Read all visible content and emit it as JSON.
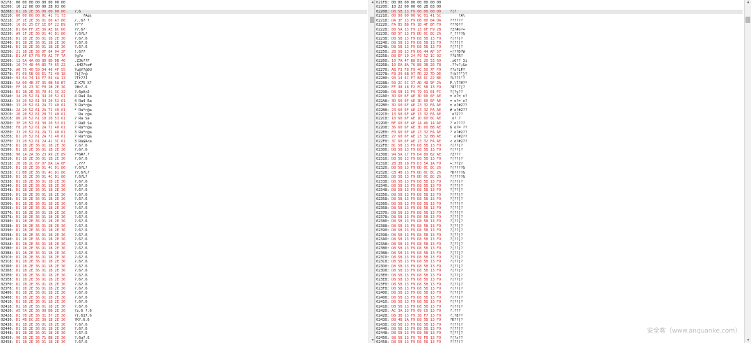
{
  "left_pane": {
    "header_rows": [
      {
        "addr": "021F8:",
        "bytes": "00 00 00 00 00 00 00 00",
        "ascii": ""
      },
      {
        "addr": "02200:",
        "bytes": "10 22 00 00 00 2B 03 00",
        "ascii": ""
      }
    ],
    "rows": [
      {
        "addr": "02208:",
        "bytes": "D1 1B 2E 36 00 00 00 00",
        "ascii": "?.6"
      },
      {
        "addr": "02210:",
        "bytes": "00 00 00 00 9C 41 71 73",
        "ascii": "    ?Aqs"
      },
      {
        "addr": "02218:",
        "bytes": "2F 1E 2E 36 D1 60 A7 80",
        "ascii": "/..6?`?"
      },
      {
        "addr": "02220:",
        "bytes": "16 8C 25 E7 1E DF 22 B9",
        "ascii": "??\"?"
      },
      {
        "addr": "02228:",
        "bytes": "D1 B4 FF 2E 36 AE 8C 60",
        "ascii": "??.6?`"
      },
      {
        "addr": "02230:",
        "bytes": "A9 1F 2E 36 D1 4C D1 86",
        "ascii": "?.6?L?"
      },
      {
        "addr": "02238:",
        "bytes": "D1 1B 2E 36 D1 1B 2E 36",
        "ascii": "?.6?.6"
      },
      {
        "addr": "02240:",
        "bytes": "D1 1B 2E 36 D1 1B 2E 36",
        "ascii": "?.6?.6"
      },
      {
        "addr": "02248:",
        "bytes": "D1 1B 2E 36 D1 1B 2E 36",
        "ascii": "?.6?.6"
      },
      {
        "addr": "02250:",
        "bytes": "21 1B 2E 36 DF 04 94 3F",
        "ascii": "!.6??"
      },
      {
        "addr": "02258:",
        "bytes": "D1 AF 67 FB FD A2 7F 7A",
        "ascii": "?g?z"
      },
      {
        "addr": "02260:",
        "bytes": "12 5A 4A 6B 8D 8D DB 46",
        "ascii": ".ZJk??F"
      },
      {
        "addr": "02268:",
        "bytes": "10 74 48 44 B5 74 65 23",
        "ascii": ".tHD?te#"
      },
      {
        "addr": "02270:",
        "bytes": "A0 75 40 59 D4 40 4F 55",
        "ascii": "?u@Y?@OU"
      },
      {
        "addr": "02278:",
        "bytes": "F1 69 5B 93 E1 72 40 18",
        "ascii": "?i[?r@"
      },
      {
        "addr": "02280:",
        "bytes": "93 54 74 14 F7 E4 4A 13",
        "ascii": "?Tt??J"
      },
      {
        "addr": "02288:",
        "bytes": "5A 00 4B 37 35 0B 58 B7",
        "ascii": "Z K75 X?"
      },
      {
        "addr": "02290:",
        "bytes": "FF 16 23 3C F0 1B 2E 36",
        "ascii": "?#<?.6"
      },
      {
        "addr": "02298:",
        "bytes": "D1 1B 2E 36 70 41 3C 32",
        "ascii": "?.6pA<2"
      },
      {
        "addr": "022A0:",
        "bytes": "34 20 52 61 34 20 52 61",
        "ascii": "4 Ra4 Ra"
      },
      {
        "addr": "022A8:",
        "bytes": "34 20 52 61 34 20 52 61",
        "ascii": "4 Ra4 Ra"
      },
      {
        "addr": "022B0:",
        "bytes": "33 20 52 61 2A 72 40 61",
        "ascii": "3 Ra*r@a"
      },
      {
        "addr": "022B8:",
        "bytes": "2A 20 52 61 2A 72 40 61",
        "ascii": "* Ra*r@a"
      },
      {
        "addr": "022C0:",
        "bytes": "20 20 52 61 20 72 40 61",
        "ascii": "  Ra r@a"
      },
      {
        "addr": "022C8:",
        "bytes": "80 20 52 61 10 20 53 61",
        "ascii": "? Ra Sa"
      },
      {
        "addr": "022D0:",
        "bytes": "3F 20 52 61 30 20 53 61",
        "ascii": "? Ra0 Sa"
      },
      {
        "addr": "022D8:",
        "bytes": "F8 20 52 61 2A 72 40 61",
        "ascii": "? Ra*r@a"
      },
      {
        "addr": "022E0:",
        "bytes": "33 20 52 61 2A 72 40 61",
        "ascii": "3 Ra*r@a"
      },
      {
        "addr": "022E8:",
        "bytes": "D1 20 52 61 2A 72 40 61",
        "ascii": "? Ra*r@a"
      },
      {
        "addr": "022F0:",
        "bytes": "33 20 52 61 24 41 3C 61",
        "ascii": "3 Ra$A<a"
      },
      {
        "addr": "022F8:",
        "bytes": "D1 1B 2E 36 D1 1B 2E 36",
        "ascii": "?.6?.6"
      },
      {
        "addr": "02300:",
        "bytes": "D1 1B 2E 36 D1 1B 2E 36",
        "ascii": "?.6?.6"
      },
      {
        "addr": "02308:",
        "bytes": "90 1A 2A 36 23 A9 2E 89",
        "ascii": "?*6#?.?"
      },
      {
        "addr": "02310:",
        "bytes": "D1 1B 2E 36 D1 1B 2E 36",
        "ascii": "?.6?.6"
      },
      {
        "addr": "02318:",
        "bytes": "20 1B 2C 87 D7 DA 1A 0F",
        "ascii": " ,???"
      },
      {
        "addr": "02320:",
        "bytes": "D1 1B 2E 36 D1 4C D1 86",
        "ascii": "?.6?L?"
      },
      {
        "addr": "02328:",
        "bytes": "C1 BB 2E 36 D1 4C D1 86",
        "ascii": "??.6?L?"
      },
      {
        "addr": "02330:",
        "bytes": "D1 1B 2E 36 D1 4C D1 86",
        "ascii": "?.6?L?"
      },
      {
        "addr": "02338:",
        "bytes": "D1 1B 2E 36 D1 1B 2E 36",
        "ascii": "?.6?.6"
      },
      {
        "addr": "02340:",
        "bytes": "D1 1B 2E 36 D1 1B 2E 36",
        "ascii": "?.6?.6"
      },
      {
        "addr": "02348:",
        "bytes": "D1 1B 2E 36 D1 1B 2E 36",
        "ascii": "?.6?.6"
      },
      {
        "addr": "02350:",
        "bytes": "D1 1B 2E 36 D1 1B 2E 36",
        "ascii": "?.6?.6"
      },
      {
        "addr": "02358:",
        "bytes": "D1 1B 2E 36 D1 1B 2E 36",
        "ascii": "?.6?.6"
      },
      {
        "addr": "02360:",
        "bytes": "D1 1B 2E 36 D1 1B 2E 36",
        "ascii": "?.6?.6"
      },
      {
        "addr": "02368:",
        "bytes": "D1 1B 2E 36 D1 1B 2E 36",
        "ascii": "?.6?.6"
      },
      {
        "addr": "02370:",
        "bytes": "D1 1B 2E 36 D1 1B 2E 36",
        "ascii": "?.6?.6"
      },
      {
        "addr": "02378:",
        "bytes": "D1 1B 2E 36 D1 1B 2E 36",
        "ascii": "?.6?.6"
      },
      {
        "addr": "02380:",
        "bytes": "D1 1B 2E 36 D1 1B 2E 36",
        "ascii": "?.6?.6"
      },
      {
        "addr": "02388:",
        "bytes": "D1 1B 2E 36 D1 1B 2E 36",
        "ascii": "?.6?.6"
      },
      {
        "addr": "02390:",
        "bytes": "D1 1B 2E 36 D1 1B 2E 36",
        "ascii": "?.6?.6"
      },
      {
        "addr": "02398:",
        "bytes": "D1 1B 2E 36 D1 1B 2E 36",
        "ascii": "?.6?.6"
      },
      {
        "addr": "023A0:",
        "bytes": "D1 1B 2E 36 D1 1B 2E 36",
        "ascii": "?.6?.6"
      },
      {
        "addr": "023A8:",
        "bytes": "D1 1B 2E 36 D1 1B 2E 36",
        "ascii": "?.6?.6"
      },
      {
        "addr": "023B0:",
        "bytes": "D1 1B 2E 36 D1 1B 2E 36",
        "ascii": "?.6?.6"
      },
      {
        "addr": "023B8:",
        "bytes": "D1 1B 2E 36 D1 1B 2E 36",
        "ascii": "?.6?.6"
      },
      {
        "addr": "023C0:",
        "bytes": "D1 1B 2E 36 D1 1B 2E 36",
        "ascii": "?.6?.6"
      },
      {
        "addr": "023C8:",
        "bytes": "D1 1B 2E 36 D1 1B 2E 36",
        "ascii": "?.6?.6"
      },
      {
        "addr": "023D0:",
        "bytes": "D1 1B 2E 36 D1 1B 2E 36",
        "ascii": "?.6?.6"
      },
      {
        "addr": "023D8:",
        "bytes": "D1 1B 2E 36 D1 1B 2E 36",
        "ascii": "?.6?.6"
      },
      {
        "addr": "023E0:",
        "bytes": "D1 1B 2E 36 D1 1B 2E 36",
        "ascii": "?.6?.6"
      },
      {
        "addr": "023E8:",
        "bytes": "D1 1B 2E 36 D1 1B 2E 36",
        "ascii": "?.6?.6"
      },
      {
        "addr": "023F0:",
        "bytes": "D1 1B 2E 36 D1 1B 2E 36",
        "ascii": "?.6?.6"
      },
      {
        "addr": "023F8:",
        "bytes": "D1 1B 2E 36 D1 1B 2E 36",
        "ascii": "?.6?.6"
      },
      {
        "addr": "02400:",
        "bytes": "D1 1B 2E 36 D1 1B 2E 36",
        "ascii": "?.6?.6"
      },
      {
        "addr": "02408:",
        "bytes": "D1 1B 2E 36 D1 1B 2E 36",
        "ascii": "?.6?.6"
      },
      {
        "addr": "02410:",
        "bytes": "D1 1B 2E 36 D1 1B 2E 36",
        "ascii": "?.6?.6"
      },
      {
        "addr": "02418:",
        "bytes": "D1 1B 2E 36 D1 1B 2E 36",
        "ascii": "?.6?.6"
      },
      {
        "addr": "02420:",
        "bytes": "A5 7A 2E 36 00 DB 2E 36",
        "ascii": "?z.6 ?.6"
      },
      {
        "addr": "02428:",
        "bytes": "D1 7B 2E 36 31 37 2E 36",
        "ascii": "?{.617.6"
      },
      {
        "addr": "02430:",
        "bytes": "D1 4B DC 2E 36 1B 2E 36",
        "ascii": "?K?.6.6"
      },
      {
        "addr": "02438:",
        "bytes": "D1 1B 2E 36 D1 1B 2E 36",
        "ascii": "?.6?.6"
      },
      {
        "addr": "02440:",
        "bytes": "D1 1B 2E 36 D1 1B 2E 36",
        "ascii": "?.6?.6"
      },
      {
        "addr": "02448:",
        "bytes": "D1 1B 2E 36 D1 1B 2E 36",
        "ascii": "?.6?.6"
      },
      {
        "addr": "02450:",
        "bytes": "90 1B 2E 36 71 BB 2E 36",
        "ascii": "?.6q?.6"
      },
      {
        "addr": "02458:",
        "bytes": "D1 1B 2E 36 D1 1B 2E 36",
        "ascii": "?.6?.6"
      },
      {
        "addr": "02460:",
        "bytes": "D1 F1 2C 36 01 4B 2E 36",
        "ascii": "??,6K.6"
      },
      {
        "addr": "02468:",
        "bytes": "D1 1B 2E 36 D1 1B 2E 36",
        "ascii": "?.6?.6"
      }
    ]
  },
  "right_pane": {
    "header_rows": [
      {
        "addr": "021F8:",
        "bytes": "00 00 00 00 00 00 00 00",
        "ascii": ""
      },
      {
        "addr": "02200:",
        "bytes": "10 22 00 00 00 2B 03 00",
        "ascii": ""
      }
    ],
    "rows": [
      {
        "addr": "02208:",
        "bytes": "D8 5B 13 F9 00 00 00 00",
        "ascii": "?[?"
      },
      {
        "addr": "02210:",
        "bytes": "00 00 00 00 9C 01 41 5C",
        "ascii": "    ?A\\"
      },
      {
        "addr": "02218:",
        "bytes": "DA 3F 13 F9 DB 00 04 DA",
        "ascii": "??????"
      },
      {
        "addr": "02220:",
        "bytes": "FA B5 B8 F9 1B 4F 8F F9",
        "ascii": "???O??"
      },
      {
        "addr": "02228:",
        "bytes": "80 5A 13 F9 23 6F F9 2B",
        "ascii": "?Z?#o?+"
      },
      {
        "addr": "02230:",
        "bytes": "B8 5F 13 F9 DD 0C 8C 26",
        "ascii": "?_????&"
      },
      {
        "addr": "02238:",
        "bytes": "D8 5B 13 F9 D8 5B 13 F9",
        "ascii": "?[??[?"
      },
      {
        "addr": "02240:",
        "bytes": "D8 5B 13 F9 D8 5B 13 F9",
        "ascii": "?[??[?"
      },
      {
        "addr": "02248:",
        "bytes": "D8 5B 13 F9 D8 5B 13 F9",
        "ascii": "?[??[?"
      },
      {
        "addr": "02250:",
        "bytes": "2B 5B 13 F9 D6 44 AF 57",
        "ascii": "+[??D?W"
      },
      {
        "addr": "02258:",
        "bytes": "D8 EF 19 24 F9 52 1C 92",
        "ascii": "??$?R?"
      },
      {
        "addr": "02260:",
        "bytes": "10 7A 47 B8 B1 20 33 69",
        "ascii": ".zG?? 3i"
      },
      {
        "addr": "02268:",
        "bytes": "10 EA 8A 76 B8 3B 26 78",
        "ascii": ".??v?;&x"
      },
      {
        "addr": "02270:",
        "bytes": "A8 F3 78 F9 4C 50 7F F9",
        "ascii": "??x?LP?"
      },
      {
        "addr": "02278:",
        "bytes": "F8 29 6B 97 FD 22 7D DE",
        "ascii": "?)k??\"}?"
      },
      {
        "addr": "02280:",
        "bytes": "93 14 4C F7 E8 6C 22 BE",
        "ascii": "?L??l\"?"
      },
      {
        "addr": "02288:",
        "bytes": "50 2C 5C 37 AD 48 9F 2A",
        "ascii": "P,\\7?H?*"
      },
      {
        "addr": "02290:",
        "bytes": "FF 38 18 F2 FC 5B 13 F9",
        "ascii": "?8???[?"
      },
      {
        "addr": "02298:",
        "bytes": "D8 5B 13 F9 79 01 01 FC",
        "ascii": "?[?y??"
      },
      {
        "addr": "022A0:",
        "bytes": "3D 60 6F AE 3D 60 6F AE",
        "ascii": "=`o?=`o?"
      },
      {
        "addr": "022A8:",
        "bytes": "3D 60 6F AE 3D 60 6F AE",
        "ascii": "=`o?=`o?"
      },
      {
        "addr": "022B0:",
        "bytes": "3D 60 6F AE 23 32 FA AE",
        "ascii": "=`o?#2??"
      },
      {
        "addr": "022B8:",
        "bytes": "23 60 6F AE 23 32 FA AE",
        "ascii": "#`o?#2??"
      },
      {
        "addr": "022C0:",
        "bytes": "13 60 6F AE 13 32 FA AE",
        "ascii": "`o?2??"
      },
      {
        "addr": "022C8:",
        "bytes": "10 60 6F AE 1D 60 0C AE",
        "ascii": "`o?`?"
      },
      {
        "addr": "022D0:",
        "bytes": "BF 60 6F AE 1A A6 14 AE",
        "ascii": "?`o????"
      },
      {
        "addr": "022D8:",
        "bytes": "36 60 6F AE 3D 60 BB AE",
        "ascii": "6`o?=`??"
      },
      {
        "addr": "022E0:",
        "bytes": "F0 60 6F AE 23 32 FA AE",
        "ascii": "?`o?#2??"
      },
      {
        "addr": "022E8:",
        "bytes": "27 60 6F AE 23 32 BB AE",
        "ascii": "'`o?#2??"
      },
      {
        "addr": "022F0:",
        "bytes": "3C 60 6F AE 23 32 FA AE",
        "ascii": "<`o?#2??"
      },
      {
        "addr": "022F8:",
        "bytes": "8C 5B 13 F9 D8 5B 13 F9",
        "ascii": "?[??[?"
      },
      {
        "addr": "02300:",
        "bytes": "D8 5B 13 F9 D8 5B 13 F9",
        "ascii": "?[??[?"
      },
      {
        "addr": "02308:",
        "bytes": "94 5A 17 F9 D4 89 B2 AE",
        "ascii": "?Z???"
      },
      {
        "addr": "02310:",
        "bytes": "D8 5B 13 F9 D8 5B 13 F9",
        "ascii": "?[??[?"
      },
      {
        "addr": "02318:",
        "bytes": "2B 3B 18 F9 D3 5A 1A F9",
        "ascii": "+;??Z?"
      },
      {
        "addr": "02320:",
        "bytes": "D8 5B 13 F9 DD 0C 8C 26",
        "ascii": "?[????&"
      },
      {
        "addr": "02328:",
        "bytes": "CB 4B 13 F9 DD 0C 8C 26",
        "ascii": "?K????&"
      },
      {
        "addr": "02330:",
        "bytes": "D8 5B 13 F9 DD 0C 8C 26",
        "ascii": "?[????&"
      },
      {
        "addr": "02338:",
        "bytes": "D8 5B 13 F9 D8 5B 13 F9",
        "ascii": "?[??[?"
      },
      {
        "addr": "02340:",
        "bytes": "D8 5B 13 F9 D8 5B 13 F9",
        "ascii": "?[??[?"
      },
      {
        "addr": "02348:",
        "bytes": "D8 5B 13 F9 D8 5B 13 F9",
        "ascii": "?[??[?"
      },
      {
        "addr": "02350:",
        "bytes": "D8 5B 13 F9 D8 5B 13 F9",
        "ascii": "?[??[?"
      },
      {
        "addr": "02358:",
        "bytes": "D8 5B 13 F9 D8 5B 13 F9",
        "ascii": "?[??[?"
      },
      {
        "addr": "02360:",
        "bytes": "D8 5B 13 F9 D8 5B 13 F9",
        "ascii": "?[??[?"
      },
      {
        "addr": "02368:",
        "bytes": "D8 5B 13 F9 D8 5B 13 F9",
        "ascii": "?[??[?"
      },
      {
        "addr": "02370:",
        "bytes": "D8 5B 13 F9 D8 5B 13 F9",
        "ascii": "?[??[?"
      },
      {
        "addr": "02378:",
        "bytes": "D8 5B 13 F9 D8 5B 13 F9",
        "ascii": "?[??[?"
      },
      {
        "addr": "02380:",
        "bytes": "D8 5B 13 F9 D8 5B 13 F9",
        "ascii": "?[??[?"
      },
      {
        "addr": "02388:",
        "bytes": "D8 5B 13 F9 D8 5B 13 F9",
        "ascii": "?[??[?"
      },
      {
        "addr": "02390:",
        "bytes": "D8 5B 13 F9 D8 5B 13 F9",
        "ascii": "?[??[?"
      },
      {
        "addr": "02398:",
        "bytes": "D8 5B 13 F9 D8 5B 13 F9",
        "ascii": "?[??[?"
      },
      {
        "addr": "023A0:",
        "bytes": "D8 5B 13 F9 D8 5B 13 F9",
        "ascii": "?[??[?"
      },
      {
        "addr": "023A8:",
        "bytes": "D8 5B 13 F9 D8 5B 13 F9",
        "ascii": "?[??[?"
      },
      {
        "addr": "023B0:",
        "bytes": "D8 5B 13 F9 D8 5B 13 F9",
        "ascii": "?[??[?"
      },
      {
        "addr": "023B8:",
        "bytes": "D8 5B 13 F9 D8 5B 13 F9",
        "ascii": "?[??[?"
      },
      {
        "addr": "023C0:",
        "bytes": "D8 5B 13 F9 D8 5B 13 F9",
        "ascii": "?[??[?"
      },
      {
        "addr": "023C8:",
        "bytes": "D8 5B 13 F9 D8 5B 13 F9",
        "ascii": "?[??[?"
      },
      {
        "addr": "023D0:",
        "bytes": "D8 5B 13 F9 D8 5B 13 F9",
        "ascii": "?[??[?"
      },
      {
        "addr": "023D8:",
        "bytes": "D8 5B 13 F9 D8 5B 13 F9",
        "ascii": "?[??[?"
      },
      {
        "addr": "023E0:",
        "bytes": "D8 5B 13 F9 D8 5B 13 F9",
        "ascii": "?[??[?"
      },
      {
        "addr": "023E8:",
        "bytes": "D8 5B 13 F9 D8 5B 13 F9",
        "ascii": "?[??[?"
      },
      {
        "addr": "023F0:",
        "bytes": "D8 5B 13 F9 D8 5B 13 F9",
        "ascii": "?[??[?"
      },
      {
        "addr": "023F8:",
        "bytes": "D8 5B 13 F9 D8 5B 13 F9",
        "ascii": "?[??[?"
      },
      {
        "addr": "02400:",
        "bytes": "D8 5B 13 F9 D8 5B 13 F9",
        "ascii": "?[??[?"
      },
      {
        "addr": "02408:",
        "bytes": "D8 5B 13 F9 D8 5B 13 F9",
        "ascii": "?[??[?"
      },
      {
        "addr": "02410:",
        "bytes": "D8 5B 13 F9 D8 5B 13 F9",
        "ascii": "?[??[?"
      },
      {
        "addr": "02418:",
        "bytes": "D8 5B 13 F9 D8 5B 13 F9",
        "ascii": "?[??[?"
      },
      {
        "addr": "02420:",
        "bytes": "AC 3A 13 F9 09 C0 13 F9",
        "ascii": "?:???"
      },
      {
        "addr": "02428:",
        "bytes": "D8 3B 13 F9 38 F7 13 F9",
        "ascii": "?;?8??"
      },
      {
        "addr": "02430:",
        "bytes": "D8 4B 1A F9 D8 5B 13 F9",
        "ascii": "?K??[?"
      },
      {
        "addr": "02438:",
        "bytes": "D8 5B 13 F9 D8 5B 13 F9",
        "ascii": "?[??[?"
      },
      {
        "addr": "02440:",
        "bytes": "D8 5B 13 F9 D8 5B 13 F9",
        "ascii": "?[??[?"
      },
      {
        "addr": "02448:",
        "bytes": "D8 5B 13 F9 D8 5B 13 F9",
        "ascii": "?[??[?"
      },
      {
        "addr": "02450:",
        "bytes": "98 5B 13 F9 78 FB 13 F9",
        "ascii": "?[?x??"
      },
      {
        "addr": "02458:",
        "bytes": "D8 5B 13 F9 D8 5B 13 F9",
        "ascii": "?[??[?"
      },
      {
        "addr": "02460:",
        "bytes": "D8 F1 11 F9 08 4B 13 F9",
        "ascii": "???K?"
      },
      {
        "addr": "02468:",
        "bytes": "D8 5B 13 F9 D8 5B 13 F9",
        "ascii": "?[??[?"
      }
    ]
  },
  "watermark": "安全客（www.anquanke.com）",
  "colors": {
    "diff_byte": "#d42a2a",
    "normal_text": "#1a1a1a",
    "highlight_row": "#e7e7e7"
  }
}
